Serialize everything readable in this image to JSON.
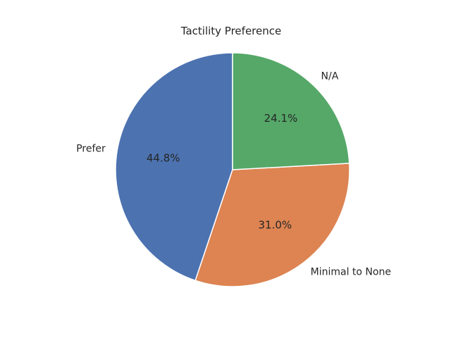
{
  "chart_data": {
    "type": "pie",
    "title": "Tactility Preference",
    "categories": [
      "Prefer",
      "Minimal to None",
      "N/A"
    ],
    "values": [
      44.8,
      31.0,
      24.1
    ],
    "percent_labels": [
      "44.8%",
      "31.0%",
      "24.1%"
    ],
    "colors": [
      "#4c72b0",
      "#dd8452",
      "#55a868"
    ],
    "start_angle_deg": 90,
    "direction": "counterclockwise",
    "legend": "none"
  }
}
